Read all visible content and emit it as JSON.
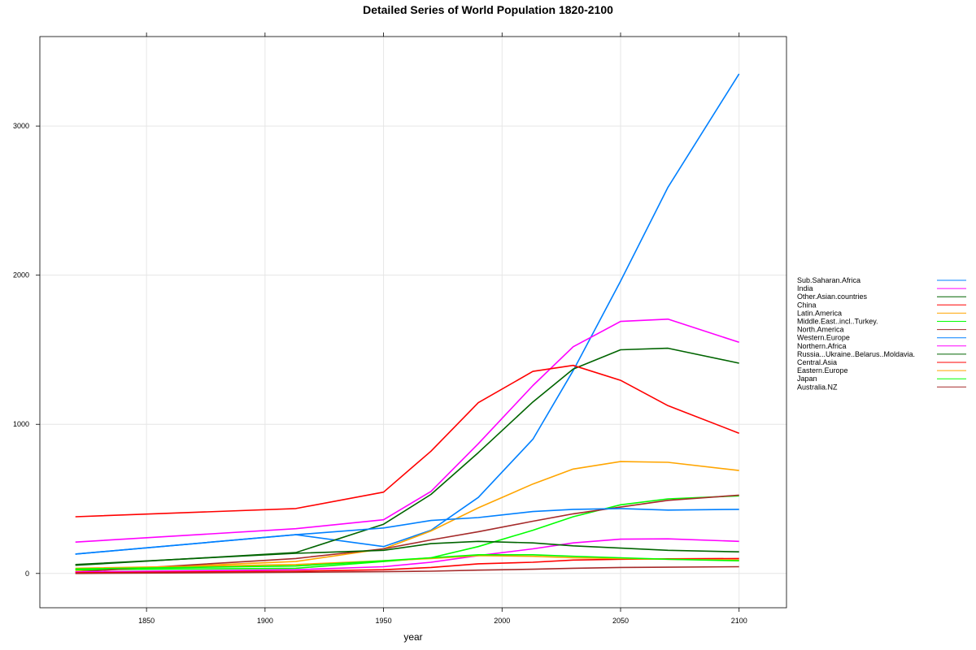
{
  "chart_data": {
    "type": "line",
    "title": "Detailed Series of World Population 1820-2100",
    "xlabel": "year",
    "ylabel": "",
    "xlim": [
      1805,
      2120
    ],
    "ylim": [
      -230,
      3600
    ],
    "x_ticks": [
      1850,
      1900,
      1950,
      2000,
      2050,
      2100
    ],
    "y_ticks": [
      0,
      1000,
      2000,
      3000
    ],
    "grid": true,
    "legend_position": "right",
    "x": [
      1820,
      1913,
      1950,
      1970,
      1990,
      2013,
      2030,
      2050,
      2070,
      2100
    ],
    "series": [
      {
        "name": "Sub.Saharan.Africa",
        "color": "#0080ff",
        "values": [
          130,
          260,
          180,
          290,
          510,
          900,
          1360,
          1960,
          2590,
          3350
        ]
      },
      {
        "name": "India",
        "color": "#ff00ff",
        "values": [
          210,
          300,
          360,
          550,
          870,
          1260,
          1520,
          1690,
          1705,
          1550
        ]
      },
      {
        "name": "Other.Asian.countries",
        "color": "#006400",
        "values": [
          55,
          140,
          330,
          530,
          810,
          1150,
          1370,
          1500,
          1510,
          1410
        ]
      },
      {
        "name": "China",
        "color": "#ff0000",
        "values": [
          380,
          435,
          545,
          820,
          1145,
          1355,
          1395,
          1295,
          1125,
          940
        ]
      },
      {
        "name": "Latin.America",
        "color": "#ffa500",
        "values": [
          20,
          80,
          165,
          285,
          440,
          600,
          700,
          750,
          745,
          690
        ]
      },
      {
        "name": "Middle.East..incl..Turkey.",
        "color": "#00ff00",
        "values": [
          25,
          35,
          80,
          105,
          180,
          290,
          380,
          460,
          500,
          520
        ]
      },
      {
        "name": "North.America",
        "color": "#a52a2a",
        "values": [
          10,
          100,
          165,
          225,
          280,
          350,
          400,
          445,
          490,
          525
        ]
      },
      {
        "name": "Western.Europe",
        "color": "#0080ff",
        "values": [
          130,
          260,
          305,
          355,
          375,
          415,
          430,
          435,
          425,
          430
        ]
      },
      {
        "name": "Northern.Africa",
        "color": "#ff00ff",
        "values": [
          10,
          25,
          45,
          75,
          120,
          165,
          205,
          230,
          232,
          215
        ]
      },
      {
        "name": "Russia...Ukraine..Belarus..Moldavia.",
        "color": "#006400",
        "values": [
          60,
          135,
          155,
          200,
          215,
          205,
          185,
          170,
          155,
          145
        ]
      },
      {
        "name": "Central.Asia",
        "color": "#ff0000",
        "values": [
          5,
          15,
          25,
          40,
          65,
          75,
          90,
          95,
          98,
          100
        ]
      },
      {
        "name": "Eastern.Europe",
        "color": "#ffa500",
        "values": [
          35,
          60,
          85,
          100,
          120,
          115,
          105,
          100,
          95,
          90
        ]
      },
      {
        "name": "Japan",
        "color": "#00ff00",
        "values": [
          30,
          50,
          85,
          105,
          125,
          125,
          115,
          105,
          95,
          85
        ]
      },
      {
        "name": "Australia.NZ",
        "color": "#a52a2a",
        "values": [
          0,
          8,
          12,
          15,
          22,
          28,
          35,
          40,
          42,
          45
        ]
      }
    ]
  }
}
